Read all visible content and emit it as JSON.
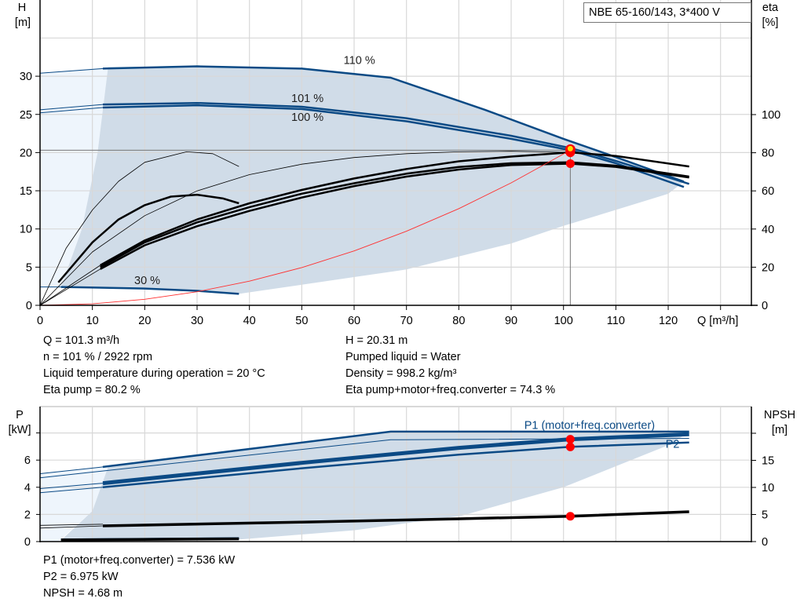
{
  "title": "NBE 65-160/143, 3*400 V",
  "colors": {
    "curve_blue": "#0b4a85",
    "area": "#d0dce8",
    "area_light": "#eef5fc",
    "system_curve": "#ff3030",
    "duty_point": "#ff0000",
    "duty_point_center": "#ffd700",
    "grid": "#d8d8d8"
  },
  "info_top": {
    "left": [
      "Q = 101.3 m³/h",
      "n = 101 % / 2922 rpm",
      "Liquid temperature during operation = 20 °C",
      "Eta pump = 80.2 %"
    ],
    "right": [
      "H = 20.31 m",
      "Pumped liquid = Water",
      "Density = 998.2 kg/m³",
      "Eta pump+motor+freq.converter = 74.3 %"
    ]
  },
  "info_bottom": [
    "P1 (motor+freq.converter) = 7.536 kW",
    "P2 = 6.975 kW",
    "NPSH = 4.68 m"
  ],
  "chart_data": [
    {
      "type": "line",
      "title": "NBE 65-160/143, 3*400 V",
      "xlabel": "Q [m³/h]",
      "ylabel": "H [m]",
      "y2label": "eta [%]",
      "ylabel_lines": [
        "H",
        "[m]"
      ],
      "y2label_lines": [
        "eta",
        "[%]"
      ],
      "xlim": [
        0,
        135
      ],
      "ylim": [
        0,
        40
      ],
      "y2lim": [
        0,
        164
      ],
      "xticks": [
        0,
        10,
        20,
        30,
        40,
        50,
        60,
        70,
        80,
        90,
        100,
        110,
        120
      ],
      "yticks": [
        0,
        5,
        10,
        15,
        20,
        25,
        30
      ],
      "y2ticks": [
        0,
        20,
        40,
        60,
        80,
        100
      ],
      "grid": true,
      "curve_labels": [
        {
          "text": "110 %",
          "q": 58,
          "h": 31.6
        },
        {
          "text": "101 %",
          "q": 48,
          "h": 26.6
        },
        {
          "text": "100 %",
          "q": 48,
          "h": 26.0
        },
        {
          "text": "30 %",
          "q": 18,
          "h": 2.8
        }
      ],
      "series": [
        {
          "axis": "H",
          "style": "blue-thick",
          "points": [
            [
              12,
              31
            ],
            [
              30,
              31.3
            ],
            [
              50,
              31
            ],
            [
              67,
              29.8
            ],
            [
              85,
              25.6
            ],
            [
              100,
              21.8
            ],
            [
              110,
              19.4
            ],
            [
              123,
              16.2
            ]
          ]
        },
        {
          "axis": "H",
          "style": "blue-thin",
          "points": [
            [
              0,
              30.4
            ],
            [
              12,
              31
            ]
          ]
        },
        {
          "axis": "H",
          "style": "blue-thick",
          "points": [
            [
              12,
              26.3
            ],
            [
              30,
              26.5
            ],
            [
              50,
              26
            ],
            [
              70,
              24.5
            ],
            [
              90,
              22.2
            ],
            [
              101.3,
              20.6
            ],
            [
              110,
              18.9
            ],
            [
              124,
              15.9
            ]
          ]
        },
        {
          "axis": "H",
          "style": "blue-thin",
          "points": [
            [
              0,
              25.6
            ],
            [
              12,
              26.3
            ]
          ]
        },
        {
          "axis": "H",
          "style": "blue-thick",
          "points": [
            [
              12,
              25.9
            ],
            [
              30,
              26.2
            ],
            [
              50,
              25.7
            ],
            [
              70,
              24.1
            ],
            [
              90,
              21.8
            ],
            [
              101.3,
              20.31
            ],
            [
              110,
              18.6
            ],
            [
              123,
              15.5
            ]
          ]
        },
        {
          "axis": "H",
          "style": "blue-thin",
          "points": [
            [
              0,
              25.2
            ],
            [
              12,
              25.9
            ]
          ]
        },
        {
          "axis": "H",
          "style": "blue-thick",
          "points": [
            [
              4,
              2.4
            ],
            [
              20,
              2.2
            ],
            [
              30,
              1.9
            ],
            [
              38,
              1.5
            ]
          ]
        },
        {
          "axis": "H",
          "style": "blue-thin",
          "points": [
            [
              0,
              2.4
            ],
            [
              4,
              2.4
            ]
          ]
        },
        {
          "axis": "eta",
          "style": "black-thin",
          "points": [
            [
              0,
              0
            ],
            [
              10,
              28
            ],
            [
              20,
              47
            ],
            [
              30,
              60
            ],
            [
              40,
              68.5
            ],
            [
              50,
              74
            ],
            [
              60,
              77.5
            ],
            [
              70,
              79.5
            ],
            [
              80,
              80.5
            ],
            [
              90,
              80.8
            ],
            [
              101.3,
              80.2
            ],
            [
              110,
              78.5
            ],
            [
              124,
              72.8
            ]
          ]
        },
        {
          "axis": "eta",
          "style": "black-thick",
          "points": [
            [
              11.5,
              21
            ],
            [
              20,
              34
            ],
            [
              30,
              45
            ],
            [
              40,
              53.5
            ],
            [
              50,
              60.5
            ],
            [
              60,
              66.5
            ],
            [
              70,
              71.5
            ],
            [
              80,
              75.5
            ],
            [
              90,
              78
            ],
            [
              101.3,
              80.2
            ],
            [
              110,
              78.3
            ],
            [
              124,
              72.8
            ]
          ]
        },
        {
          "axis": "eta",
          "style": "black-thick",
          "points": [
            [
              11.5,
              20
            ],
            [
              20,
              33
            ],
            [
              30,
              43.5
            ],
            [
              40,
              51.5
            ],
            [
              50,
              58.5
            ],
            [
              60,
              64
            ],
            [
              70,
              69
            ],
            [
              80,
              72.5
            ],
            [
              90,
              74.5
            ],
            [
              101.3,
              75
            ],
            [
              110,
              73.2
            ],
            [
              124,
              67.5
            ]
          ]
        },
        {
          "axis": "eta",
          "style": "black-thick",
          "points": [
            [
              11.5,
              19
            ],
            [
              20,
              31.5
            ],
            [
              30,
              41.5
            ],
            [
              40,
              49.5
            ],
            [
              50,
              56.5
            ],
            [
              60,
              62.5
            ],
            [
              70,
              67.5
            ],
            [
              80,
              71.2
            ],
            [
              90,
              73.6
            ],
            [
              101.3,
              74.3
            ],
            [
              110,
              72.6
            ],
            [
              124,
              67
            ]
          ]
        },
        {
          "axis": "eta",
          "style": "black-thin",
          "points": [
            [
              0,
              0
            ],
            [
              11.5,
              19
            ]
          ]
        },
        {
          "axis": "eta",
          "style": "black-thin",
          "points": [
            [
              0,
              0
            ],
            [
              11.5,
              21
            ]
          ]
        },
        {
          "axis": "eta",
          "style": "black-thin",
          "points": [
            [
              0,
              0
            ],
            [
              5,
              30
            ],
            [
              10,
              50
            ],
            [
              15,
              65
            ],
            [
              20,
              75
            ],
            [
              28,
              80.5
            ],
            [
              33,
              79.5
            ],
            [
              38,
              72.8
            ]
          ]
        },
        {
          "axis": "eta",
          "style": "black-thick",
          "points": [
            [
              3.5,
              12
            ],
            [
              10,
              33
            ],
            [
              15,
              45
            ],
            [
              20,
              52.5
            ],
            [
              25,
              57
            ],
            [
              30,
              58
            ],
            [
              35,
              56
            ],
            [
              38,
              53.5
            ]
          ]
        },
        {
          "axis": "H",
          "style": "system",
          "points": [
            [
              0,
              0
            ],
            [
              10,
              0.198
            ],
            [
              20,
              0.792
            ],
            [
              30,
              1.781
            ],
            [
              40,
              3.167
            ],
            [
              50,
              4.948
            ],
            [
              60,
              7.125
            ],
            [
              70,
              9.698
            ],
            [
              80,
              12.667
            ],
            [
              90,
              16.031
            ],
            [
              101.3,
              20.31
            ]
          ]
        }
      ],
      "duty_point": {
        "q": 101.3,
        "h": 20.31,
        "eta_pump": 80.2,
        "eta_total": 74.3
      }
    },
    {
      "type": "line",
      "xlabel": "",
      "ylabel": "P [kW]",
      "y2label": "NPSH [m]",
      "ylabel_lines": [
        "P",
        "[kW]"
      ],
      "y2label_lines": [
        "NPSH",
        "[m]"
      ],
      "xlim": [
        0,
        135
      ],
      "ylim": [
        0,
        10
      ],
      "y2lim": [
        0,
        25
      ],
      "yticks": [
        0,
        2,
        4,
        6
      ],
      "y2ticks": [
        0,
        5,
        10,
        15
      ],
      "grid": true,
      "curve_labels": [
        {
          "text": "P1 (motor+freq.converter)",
          "q": 92.5,
          "p": 8.3
        },
        {
          "text": "P2",
          "q": 119.5,
          "p": 6.9
        }
      ],
      "series": [
        {
          "axis": "P",
          "style": "blue-thick",
          "points": [
            [
              12,
              5.5
            ],
            [
              67,
              8.1
            ],
            [
              124,
              8.1
            ]
          ]
        },
        {
          "axis": "P",
          "style": "blue-thin",
          "points": [
            [
              0,
              5.0
            ],
            [
              12,
              5.5
            ]
          ]
        },
        {
          "axis": "P",
          "style": "blue-thin",
          "points": [
            [
              0,
              4.7
            ],
            [
              67,
              7.5
            ],
            [
              124,
              7.6
            ]
          ]
        },
        {
          "axis": "P",
          "style": "blue-heavy",
          "points": [
            [
              12,
              4.3
            ],
            [
              50,
              5.8
            ],
            [
              80,
              6.9
            ],
            [
              101.3,
              7.536
            ],
            [
              124,
              7.9
            ]
          ]
        },
        {
          "axis": "P",
          "style": "blue-thin",
          "points": [
            [
              0,
              3.9
            ],
            [
              12,
              4.3
            ]
          ]
        },
        {
          "axis": "P",
          "style": "blue-thick",
          "points": [
            [
              12,
              4.0
            ],
            [
              50,
              5.4
            ],
            [
              80,
              6.4
            ],
            [
              101.3,
              6.975
            ],
            [
              124,
              7.3
            ]
          ]
        },
        {
          "axis": "P",
          "style": "blue-thin",
          "points": [
            [
              0,
              3.6
            ],
            [
              12,
              4.0
            ]
          ]
        },
        {
          "axis": "P",
          "style": "blue-thick",
          "points": [
            [
              4,
              0.15
            ],
            [
              38,
              0.25
            ]
          ]
        },
        {
          "axis": "NPSH",
          "style": "black-heavy",
          "points": [
            [
              12,
              2.9
            ],
            [
              50,
              3.6
            ],
            [
              80,
              4.2
            ],
            [
              101.3,
              4.68
            ],
            [
              124,
              5.5
            ]
          ]
        },
        {
          "axis": "NPSH",
          "style": "black-thin",
          "points": [
            [
              0,
              3.0
            ],
            [
              12,
              3.2
            ]
          ]
        },
        {
          "axis": "NPSH",
          "style": "black-thin",
          "points": [
            [
              0,
              2.5
            ],
            [
              12,
              2.9
            ]
          ]
        },
        {
          "axis": "NPSH",
          "style": "black-heavy",
          "points": [
            [
              4,
              0.3
            ],
            [
              38,
              0.5
            ]
          ]
        }
      ],
      "duty_point": {
        "q": 101.3,
        "p1": 7.536,
        "p2": 6.975,
        "npsh": 4.68
      }
    }
  ]
}
